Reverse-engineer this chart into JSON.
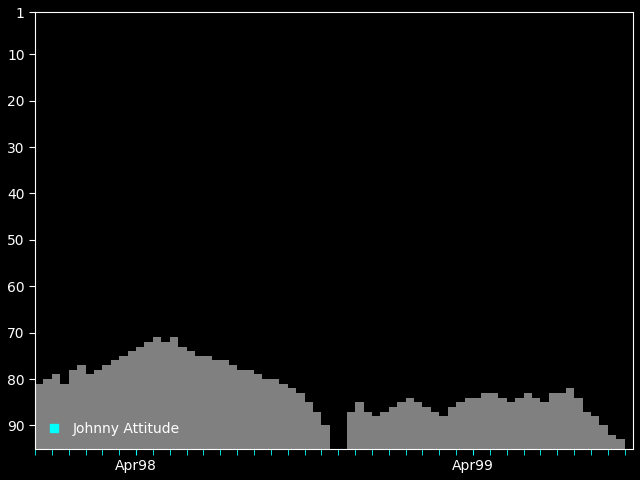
{
  "background_color": "#000000",
  "bar_color": "#808080",
  "text_color": "#ffffff",
  "tick_color": "#00ffff",
  "legend_label": "Johnny Attitude",
  "legend_marker_color": "#00ffff",
  "ylim_bottom": 95,
  "ylim_top": 1,
  "yticks": [
    1,
    10,
    20,
    30,
    40,
    50,
    60,
    70,
    80,
    90
  ],
  "xtick_labels_positions": [
    12,
    52
  ],
  "xtick_labels": [
    "Apr98",
    "Apr99"
  ],
  "series": [
    81,
    80,
    79,
    81,
    78,
    77,
    79,
    78,
    77,
    76,
    75,
    74,
    73,
    72,
    71,
    72,
    71,
    73,
    74,
    75,
    75,
    76,
    76,
    77,
    78,
    78,
    79,
    80,
    80,
    81,
    82,
    83,
    85,
    87,
    90,
    95,
    95,
    87,
    85,
    87,
    88,
    87,
    86,
    85,
    84,
    85,
    86,
    87,
    88,
    86,
    85,
    84,
    84,
    83,
    83,
    84,
    85,
    84,
    83,
    84,
    85,
    83,
    83,
    82,
    84,
    87,
    88,
    90,
    92,
    93,
    95
  ]
}
